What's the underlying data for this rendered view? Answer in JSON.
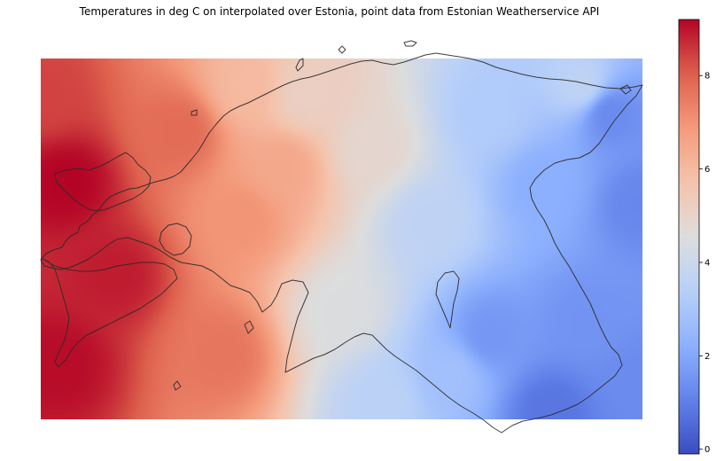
{
  "chart_data": {
    "type": "heatmap",
    "title": "Temperatures in deg C on interpolated over Estonia, point data from Estonian Weatherservice API",
    "colormap": "coolwarm",
    "colorbar": {
      "range": [
        -0.1,
        9.2
      ],
      "ticks": [
        0,
        2,
        4,
        6,
        8
      ],
      "tick_labels": [
        "0",
        "2",
        "4",
        "6",
        "8"
      ]
    },
    "field": {
      "west_to_east_gradient": true,
      "anchor_points": [
        {
          "u": 0.0,
          "v": 0.1,
          "value": 8.4
        },
        {
          "u": 0.04,
          "v": 0.34,
          "value": 9.2
        },
        {
          "u": 0.03,
          "v": 0.85,
          "value": 9.1
        },
        {
          "u": 0.12,
          "v": 0.6,
          "value": 8.9
        },
        {
          "u": 0.23,
          "v": 0.2,
          "value": 7.8
        },
        {
          "u": 0.33,
          "v": 0.44,
          "value": 7.0
        },
        {
          "u": 0.3,
          "v": 0.82,
          "value": 7.6
        },
        {
          "u": 0.34,
          "v": 0.08,
          "value": 6.0
        },
        {
          "u": 0.4,
          "v": 0.3,
          "value": 6.5
        },
        {
          "u": 0.44,
          "v": 0.1,
          "value": 5.2
        },
        {
          "u": 0.5,
          "v": 0.7,
          "value": 4.5
        },
        {
          "u": 0.55,
          "v": 0.25,
          "value": 4.9
        },
        {
          "u": 0.57,
          "v": 0.95,
          "value": 3.5
        },
        {
          "u": 0.65,
          "v": 0.45,
          "value": 3.6
        },
        {
          "u": 0.68,
          "v": 0.88,
          "value": 2.8
        },
        {
          "u": 0.75,
          "v": 0.15,
          "value": 3.2
        },
        {
          "u": 0.75,
          "v": 0.77,
          "value": 1.6
        },
        {
          "u": 0.84,
          "v": 0.35,
          "value": 2.2
        },
        {
          "u": 0.85,
          "v": 0.98,
          "value": 0.8
        },
        {
          "u": 0.91,
          "v": 0.73,
          "value": 1.5
        },
        {
          "u": 0.9,
          "v": 0.07,
          "value": 3.6
        },
        {
          "u": 0.95,
          "v": 0.15,
          "value": 1.3
        },
        {
          "u": 1.0,
          "v": 0.4,
          "value": 1.2
        },
        {
          "u": 1.0,
          "v": 0.9,
          "value": 1.3
        }
      ]
    }
  }
}
